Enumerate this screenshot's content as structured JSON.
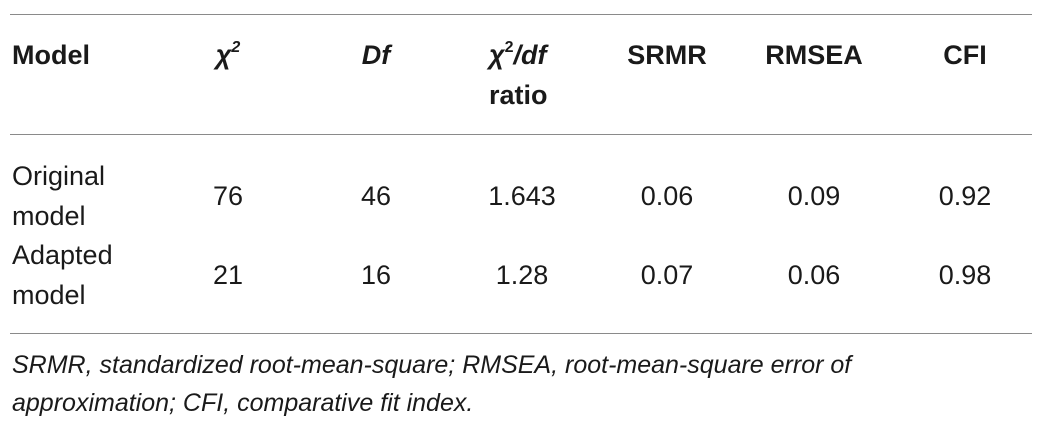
{
  "table": {
    "headers": {
      "model": "Model",
      "chi2_symbol": "χ",
      "chi2_sup": "2",
      "df": "Df",
      "ratio_symbol": "χ",
      "ratio_sup": "2",
      "ratio_tail": "/df",
      "ratio_line2": "ratio",
      "srmr": "SRMR",
      "rmsea": "RMSEA",
      "cfi": "CFI"
    },
    "rows": [
      {
        "model_line1": "Original",
        "model_line2": "model",
        "chi2": "76",
        "df": "46",
        "ratio": "1.643",
        "srmr": "0.06",
        "rmsea": "0.09",
        "cfi": "0.92"
      },
      {
        "model_line1": "Adapted",
        "model_line2": "model",
        "chi2": "21",
        "df": "16",
        "ratio": "1.28",
        "srmr": "0.07",
        "rmsea": "0.06",
        "cfi": "0.98"
      }
    ]
  },
  "footnote": "SRMR, standardized root-mean-square; RMSEA, root-mean-square error of approximation; CFI, comparative fit index."
}
